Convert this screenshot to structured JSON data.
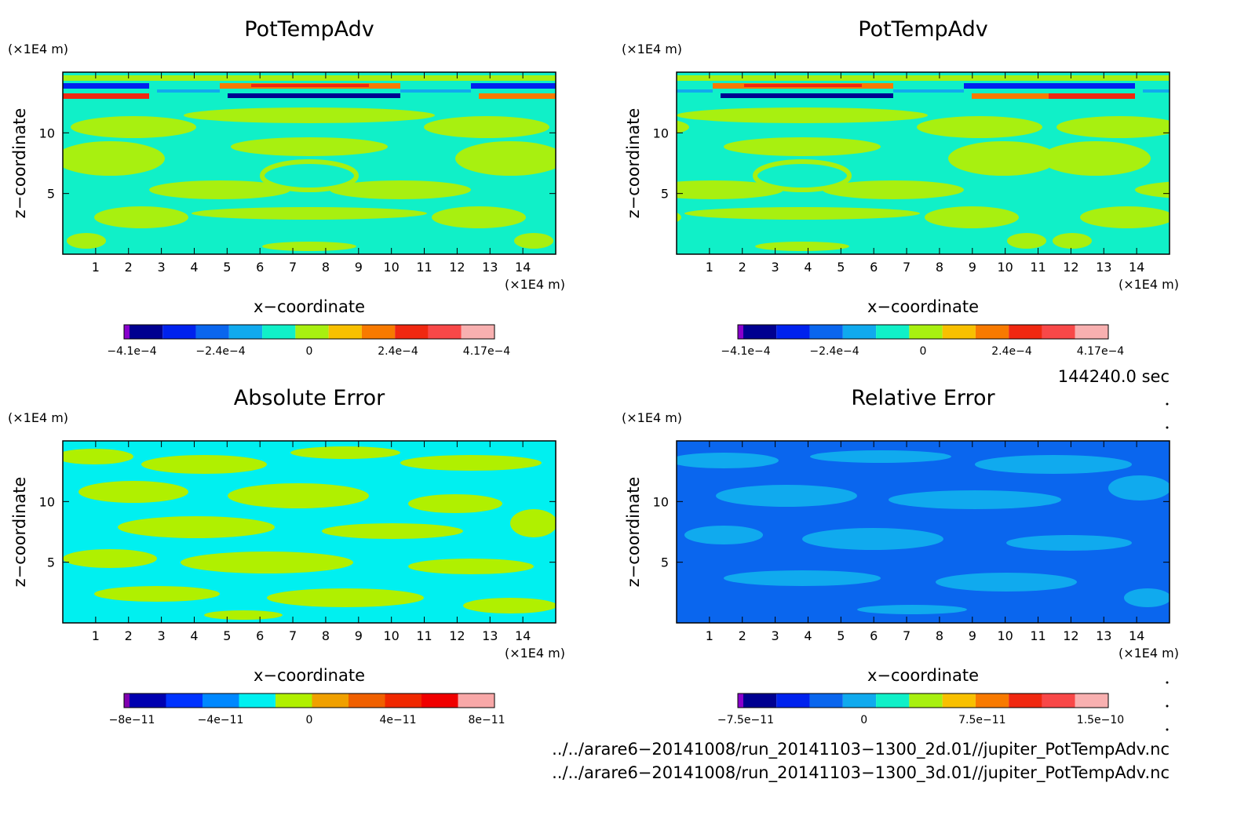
{
  "chart_data": [
    {
      "type": "heatmap",
      "title": "PotTempAdv",
      "xlabel": "x−coordinate",
      "ylabel": "z−coordinate",
      "x_unit": "(×1E4 m)",
      "y_unit": "(×1E4 m)",
      "xlim": [
        0,
        15
      ],
      "ylim": [
        0,
        15
      ],
      "xticks": [
        "1",
        "2",
        "3",
        "4",
        "5",
        "6",
        "7",
        "8",
        "9",
        "10",
        "11",
        "12",
        "13",
        "14"
      ],
      "yticks": [
        "5",
        "10"
      ],
      "colorbar": {
        "colors": [
          "#8800cc",
          "#000090",
          "#0022ee",
          "#0a66ee",
          "#10aaee",
          "#10f0c8",
          "#a8f010",
          "#f8c000",
          "#f87a00",
          "#f02810",
          "#f84848",
          "#f8b0b0"
        ],
        "tick_labels": [
          "−4.1e−4",
          "−2.4e−4",
          "0",
          "2.4e−4",
          "4.17e−4"
        ]
      }
    },
    {
      "type": "heatmap",
      "title": "PotTempAdv",
      "xlabel": "x−coordinate",
      "ylabel": "z−coordinate",
      "x_unit": "(×1E4 m)",
      "y_unit": "(×1E4 m)",
      "xlim": [
        0,
        15
      ],
      "ylim": [
        0,
        15
      ],
      "xticks": [
        "1",
        "2",
        "3",
        "4",
        "5",
        "6",
        "7",
        "8",
        "9",
        "10",
        "11",
        "12",
        "13",
        "14"
      ],
      "yticks": [
        "5",
        "10"
      ],
      "colorbar": {
        "colors": [
          "#8800cc",
          "#000090",
          "#0022ee",
          "#0a66ee",
          "#10aaee",
          "#10f0c8",
          "#a8f010",
          "#f8c000",
          "#f87a00",
          "#f02810",
          "#f84848",
          "#f8b0b0"
        ],
        "tick_labels": [
          "−4.1e−4",
          "−2.4e−4",
          "0",
          "2.4e−4",
          "4.17e−4"
        ]
      }
    },
    {
      "type": "heatmap",
      "title": "Absolute Error",
      "xlabel": "x−coordinate",
      "ylabel": "z−coordinate",
      "x_unit": "(×1E4 m)",
      "y_unit": "(×1E4 m)",
      "xlim": [
        0,
        15
      ],
      "ylim": [
        0,
        15
      ],
      "xticks": [
        "1",
        "2",
        "3",
        "4",
        "5",
        "6",
        "7",
        "8",
        "9",
        "10",
        "11",
        "12",
        "13",
        "14"
      ],
      "yticks": [
        "5",
        "10"
      ],
      "colorbar": {
        "colors": [
          "#8000b0",
          "#0000b0",
          "#0033ff",
          "#0088ff",
          "#00f0f0",
          "#b0f000",
          "#f0a000",
          "#f06000",
          "#f02800",
          "#f00000",
          "#f8a8a8"
        ],
        "tick_labels": [
          "−8e−11",
          "−4e−11",
          "0",
          "4e−11",
          "8e−11"
        ]
      }
    },
    {
      "type": "heatmap",
      "title": "Relative Error",
      "xlabel": "x−coordinate",
      "ylabel": "z−coordinate",
      "x_unit": "(×1E4 m)",
      "y_unit": "(×1E4 m)",
      "xlim": [
        0,
        15
      ],
      "ylim": [
        0,
        15
      ],
      "xticks": [
        "1",
        "2",
        "3",
        "4",
        "5",
        "6",
        "7",
        "8",
        "9",
        "10",
        "11",
        "12",
        "13",
        "14"
      ],
      "yticks": [
        "5",
        "10"
      ],
      "colorbar": {
        "colors": [
          "#8800cc",
          "#000090",
          "#0022ee",
          "#0a66ee",
          "#10aaee",
          "#10f0c8",
          "#a8f010",
          "#f8c000",
          "#f87a00",
          "#f02810",
          "#f84848",
          "#f8b0b0"
        ],
        "tick_labels": [
          "−7.5e−11",
          "0",
          "7.5e−11",
          "1.5e−10"
        ]
      }
    }
  ],
  "time_label": "144240.0 sec",
  "file_paths": [
    "../../arare6−20141008/run_20141103−1300_2d.01//jupiter_PotTempAdv.nc",
    "../../arare6−20141008/run_20141103−1300_3d.01//jupiter_PotTempAdv.nc"
  ]
}
